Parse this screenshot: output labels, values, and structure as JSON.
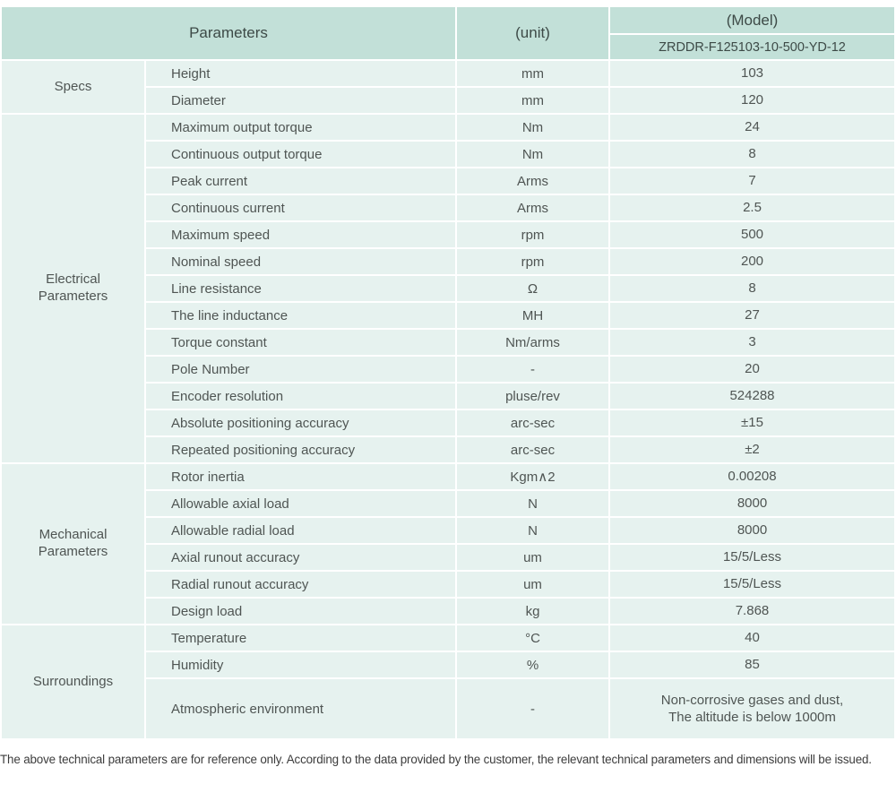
{
  "table": {
    "header": {
      "parameters_label": "Parameters",
      "unit_label": "(unit)",
      "model_label": "(Model)",
      "model_value": "ZRDDR-F125103-10-500-YD-12"
    },
    "sections": [
      {
        "category": "Specs",
        "rows": [
          {
            "parameter": "Height",
            "unit": "mm",
            "value": "103"
          },
          {
            "parameter": "Diameter",
            "unit": "mm",
            "value": "120"
          }
        ]
      },
      {
        "category": "Electrical\nParameters",
        "rows": [
          {
            "parameter": "Maximum output torque",
            "unit": "Nm",
            "value": "24"
          },
          {
            "parameter": "Continuous output torque",
            "unit": "Nm",
            "value": "8"
          },
          {
            "parameter": "Peak current",
            "unit": "Arms",
            "value": "7"
          },
          {
            "parameter": "Continuous current",
            "unit": "Arms",
            "value": "2.5"
          },
          {
            "parameter": "Maximum speed",
            "unit": "rpm",
            "value": "500"
          },
          {
            "parameter": "Nominal speed",
            "unit": "rpm",
            "value": "200"
          },
          {
            "parameter": "Line resistance",
            "unit": "Ω",
            "value": "8"
          },
          {
            "parameter": "The line inductance",
            "unit": "MH",
            "value": "27"
          },
          {
            "parameter": "Torque constant",
            "unit": "Nm/arms",
            "value": "3"
          },
          {
            "parameter": "Pole Number",
            "unit": "-",
            "value": "20"
          },
          {
            "parameter": "Encoder resolution",
            "unit": "pluse/rev",
            "value": "524288"
          },
          {
            "parameter": "Absolute positioning accuracy",
            "unit": "arc-sec",
            "value": "±15"
          },
          {
            "parameter": "Repeated positioning accuracy",
            "unit": "arc-sec",
            "value": "±2"
          }
        ]
      },
      {
        "category": "Mechanical\nParameters",
        "rows": [
          {
            "parameter": "Rotor inertia",
            "unit": "Kgm∧2",
            "value": "0.00208"
          },
          {
            "parameter": "Allowable axial load",
            "unit": "N",
            "value": "8000"
          },
          {
            "parameter": "Allowable radial load",
            "unit": "N",
            "value": "8000"
          },
          {
            "parameter": "Axial runout accuracy",
            "unit": "um",
            "value": "15/5/Less"
          },
          {
            "parameter": "Radial runout accuracy",
            "unit": "um",
            "value": "15/5/Less"
          },
          {
            "parameter": "Design load",
            "unit": "kg",
            "value": "7.868"
          }
        ]
      },
      {
        "category": "Surroundings",
        "rows": [
          {
            "parameter": "Temperature",
            "unit": "°C",
            "value": "40"
          },
          {
            "parameter": "Humidity",
            "unit": "%",
            "value": "85"
          },
          {
            "parameter": "Atmospheric environment",
            "unit": "-",
            "value": "Non-corrosive gases and dust,\nThe altitude is below 1000m",
            "tall": true
          }
        ]
      }
    ]
  },
  "footnote": "The above technical parameters are for reference only. According to the data provided by the customer, the relevant technical parameters and dimensions will be issued.",
  "colors": {
    "header_bg": "#c2e0d8",
    "cell_bg": "#e6f2ef",
    "border": "#ffffff",
    "header_text": "#3d4a47",
    "cell_text": "#4f5553",
    "footnote_text": "#3c3c3c"
  }
}
